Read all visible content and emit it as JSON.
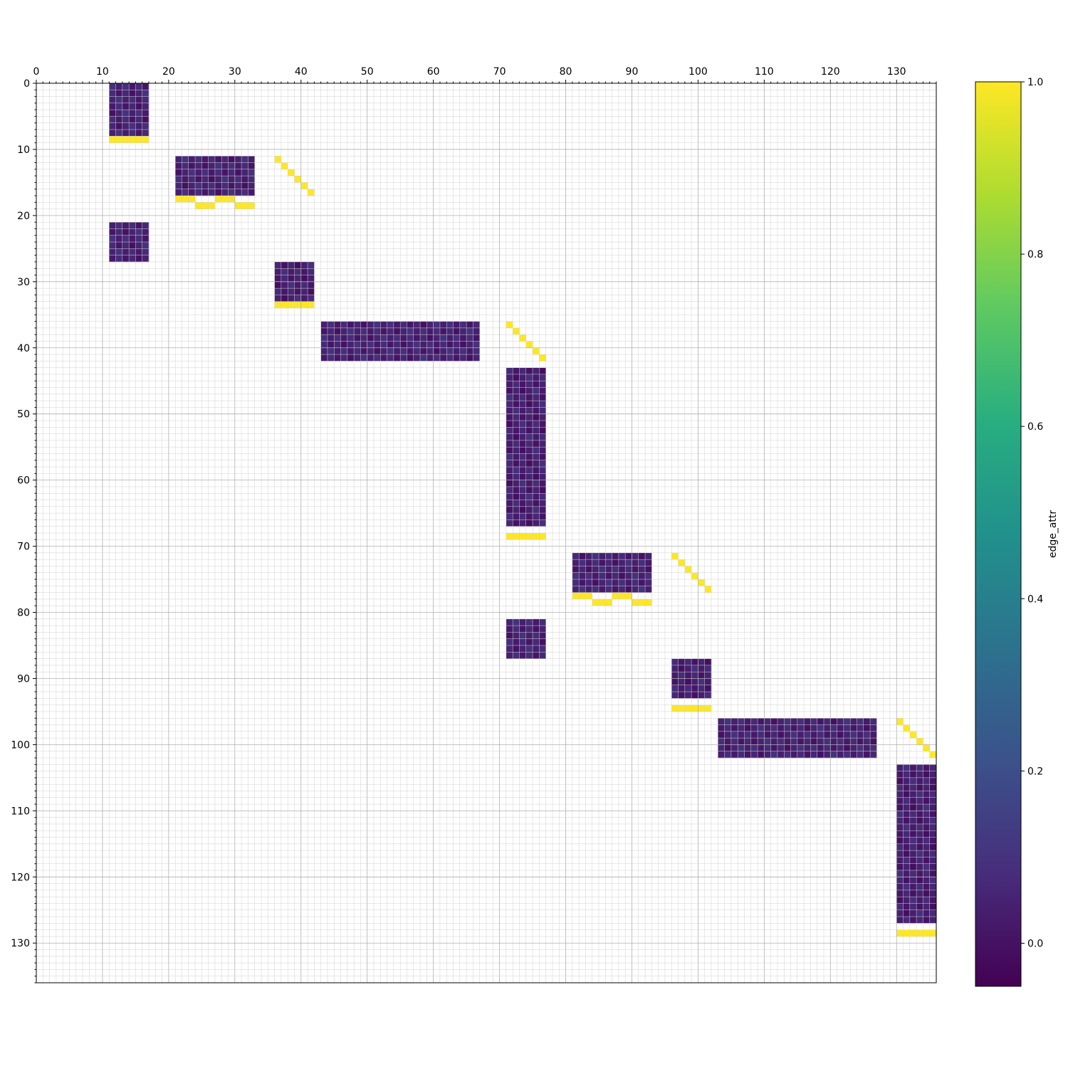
{
  "chart_data": {
    "type": "heatmap",
    "title": "",
    "xlabel": "",
    "ylabel": "",
    "xlim": [
      0,
      136
    ],
    "ylim": [
      0,
      136
    ],
    "x_axis_position": "top",
    "y_axis_inverted": true,
    "grid": true,
    "major_ticks": [
      0,
      10,
      20,
      30,
      40,
      50,
      60,
      70,
      80,
      90,
      100,
      110,
      120,
      130
    ],
    "major_tick_labels": [
      "0",
      "10",
      "20",
      "30",
      "40",
      "50",
      "60",
      "70",
      "80",
      "90",
      "100",
      "110",
      "120",
      "130"
    ],
    "minor_tick_step": 1,
    "colormap": "viridis",
    "empty_cell_color": "#ffffff",
    "colorbar": {
      "label": "edge_attr",
      "vmin": -0.05,
      "vmax": 1.0,
      "ticks": [
        0.0,
        0.2,
        0.4,
        0.6,
        0.8,
        1.0
      ],
      "tick_labels": [
        "0.0",
        "0.2",
        "0.4",
        "0.6",
        "0.8",
        "1.0"
      ],
      "placement": "right"
    },
    "blocks": [
      {
        "rows": [
          0,
          7
        ],
        "cols": [
          11,
          16
        ],
        "value": 0.05
      },
      {
        "rows": [
          11,
          16
        ],
        "cols": [
          21,
          32
        ],
        "value": 0.05
      },
      {
        "rows": [
          21,
          26
        ],
        "cols": [
          11,
          16
        ],
        "value": 0.05
      },
      {
        "rows": [
          27,
          32
        ],
        "cols": [
          36,
          41
        ],
        "value": 0.04
      },
      {
        "rows": [
          36,
          41
        ],
        "cols": [
          43,
          66
        ],
        "value": 0.05
      },
      {
        "rows": [
          43,
          66
        ],
        "cols": [
          71,
          76
        ],
        "value": 0.04
      },
      {
        "rows": [
          71,
          76
        ],
        "cols": [
          81,
          92
        ],
        "value": 0.05
      },
      {
        "rows": [
          81,
          86
        ],
        "cols": [
          71,
          76
        ],
        "value": 0.05
      },
      {
        "rows": [
          87,
          92
        ],
        "cols": [
          96,
          101
        ],
        "value": 0.04
      },
      {
        "rows": [
          96,
          101
        ],
        "cols": [
          103,
          126
        ],
        "value": 0.05
      },
      {
        "rows": [
          103,
          126
        ],
        "cols": [
          130,
          135
        ],
        "value": 0.04
      }
    ],
    "ones": [
      {
        "rows": [
          8,
          8
        ],
        "cols": [
          11,
          16
        ],
        "value": 1.0
      },
      {
        "rows": [
          17,
          17
        ],
        "cols": [
          21,
          23
        ],
        "value": 1.0
      },
      {
        "rows": [
          18,
          18
        ],
        "cols": [
          24,
          26
        ],
        "value": 1.0
      },
      {
        "rows": [
          17,
          17
        ],
        "cols": [
          27,
          29
        ],
        "value": 1.0
      },
      {
        "rows": [
          18,
          18
        ],
        "cols": [
          30,
          32
        ],
        "value": 1.0
      },
      {
        "rows": [
          33,
          33
        ],
        "cols": [
          36,
          41
        ],
        "value": 1.0
      },
      {
        "rows": [
          68,
          68
        ],
        "cols": [
          71,
          76
        ],
        "value": 1.0
      },
      {
        "rows": [
          77,
          77
        ],
        "cols": [
          81,
          83
        ],
        "value": 1.0
      },
      {
        "rows": [
          78,
          78
        ],
        "cols": [
          84,
          86
        ],
        "value": 1.0
      },
      {
        "rows": [
          77,
          77
        ],
        "cols": [
          87,
          89
        ],
        "value": 1.0
      },
      {
        "rows": [
          78,
          78
        ],
        "cols": [
          90,
          92
        ],
        "value": 1.0
      },
      {
        "rows": [
          94,
          94
        ],
        "cols": [
          96,
          101
        ],
        "value": 1.0
      },
      {
        "rows": [
          128,
          128
        ],
        "cols": [
          130,
          135
        ],
        "value": 1.0
      }
    ],
    "diagonals": [
      {
        "row_start": 11,
        "col_start": 36,
        "length": 6,
        "value": 1.0
      },
      {
        "row_start": 36,
        "col_start": 71,
        "length": 6,
        "value": 1.0
      },
      {
        "row_start": 71,
        "col_start": 96,
        "length": 6,
        "value": 1.0
      },
      {
        "row_start": 96,
        "col_start": 130,
        "length": 6,
        "value": 1.0
      }
    ]
  }
}
